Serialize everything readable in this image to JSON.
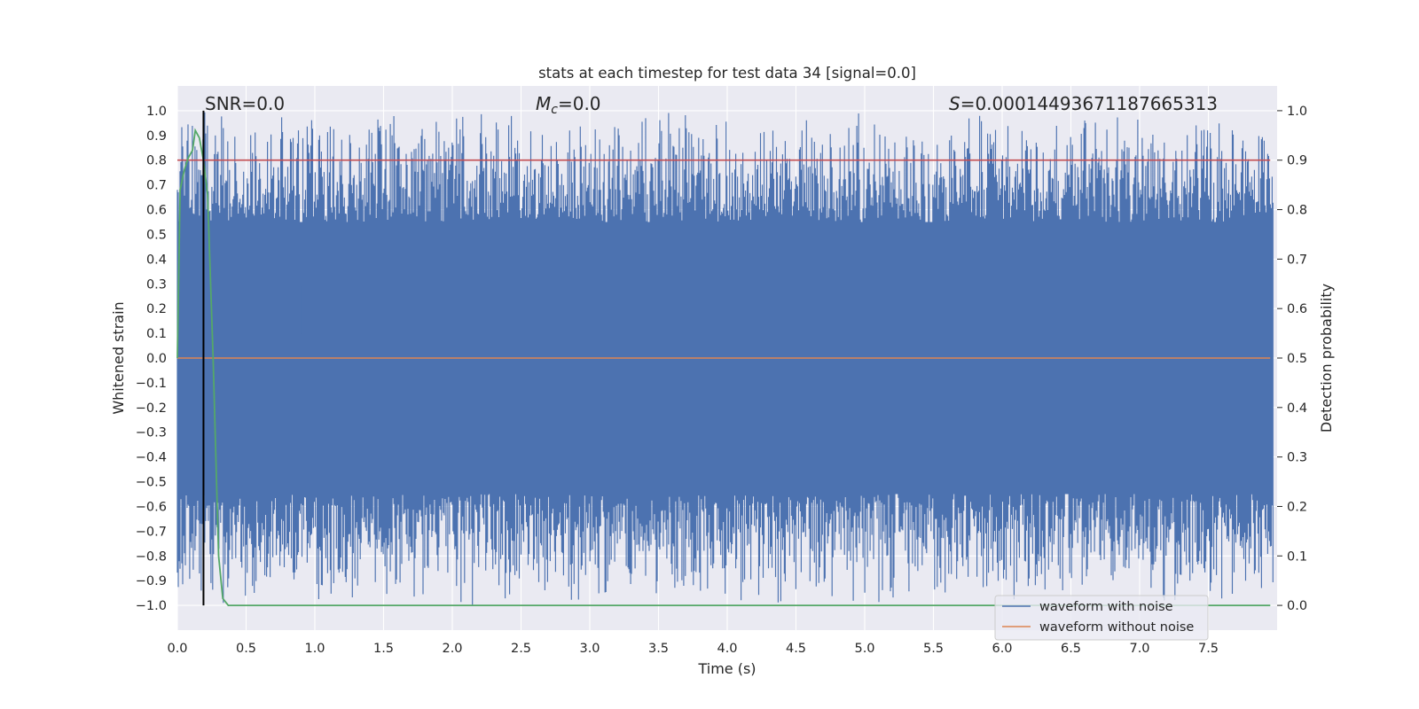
{
  "chart_data": {
    "type": "line",
    "title": "stats at each timestep for test data 34 [signal=0.0]",
    "xlabel": "Time (s)",
    "ylabel": "Whitened strain",
    "ylabel_right": "Detection probability",
    "xlim": [
      0.0,
      8.0
    ],
    "ylim": [
      -1.1,
      1.1
    ],
    "ylim_right": [
      -0.05,
      1.05
    ],
    "xticks": [
      "0.0",
      "0.5",
      "1.0",
      "1.5",
      "2.0",
      "2.5",
      "3.0",
      "3.5",
      "4.0",
      "4.5",
      "5.0",
      "5.5",
      "6.0",
      "6.5",
      "7.0",
      "7.5"
    ],
    "yticks": [
      "1.0",
      "0.9",
      "0.8",
      "0.7",
      "0.6",
      "0.5",
      "0.4",
      "0.3",
      "0.2",
      "0.1",
      "0.0",
      "−0.1",
      "−0.2",
      "−0.3",
      "−0.4",
      "−0.5",
      "−0.6",
      "−0.7",
      "−0.8",
      "−0.9",
      "−1.0"
    ],
    "yticks_right": [
      "1.0",
      "0.9",
      "0.8",
      "0.7",
      "0.6",
      "0.5",
      "0.4",
      "0.3",
      "0.2",
      "0.1",
      "0.0"
    ],
    "grid": true,
    "annotations": {
      "snr": "SNR=0.0",
      "mc_symbol": "M",
      "mc_subscript": "c",
      "mc_value": "=0.0",
      "s_symbol": "S",
      "s_value": "=0.00014493671187665313"
    },
    "legend": {
      "position": "lower-right",
      "entries": [
        "waveform with noise",
        "waveform without noise"
      ]
    },
    "series": [
      {
        "name": "waveform with noise",
        "color": "#4c72b0",
        "description": "whitened noise dense oscillating between about -1.0 and 1.0 over 0-8 s",
        "envelope_range": [
          -1.0,
          1.0
        ]
      },
      {
        "name": "waveform without noise",
        "color": "#dd8452",
        "x": [
          0.0,
          7.95
        ],
        "y": [
          0.0,
          0.0
        ]
      },
      {
        "name": "detection probability",
        "axis": "right",
        "color": "#55a868",
        "x": [
          0.0,
          0.02,
          0.05,
          0.08,
          0.11,
          0.13,
          0.16,
          0.19,
          0.22,
          0.26,
          0.3,
          0.33,
          0.37,
          0.5,
          1.0,
          2.0,
          3.0,
          4.0,
          5.0,
          6.0,
          7.0,
          7.95
        ],
        "y": [
          0.5,
          0.84,
          0.88,
          0.905,
          0.92,
          0.96,
          0.945,
          0.9,
          0.83,
          0.5,
          0.1,
          0.014,
          0.0,
          0.0,
          0.0,
          0.0,
          0.0,
          0.0,
          0.0,
          0.0,
          0.0,
          0.0
        ]
      },
      {
        "name": "threshold",
        "axis": "right",
        "color": "#c44e52",
        "x": [
          0.0,
          7.95
        ],
        "y": [
          0.9,
          0.9
        ]
      },
      {
        "name": "event marker",
        "color": "#000000",
        "x": [
          0.19
        ],
        "y_range": [
          -1.0,
          1.0
        ]
      }
    ]
  }
}
